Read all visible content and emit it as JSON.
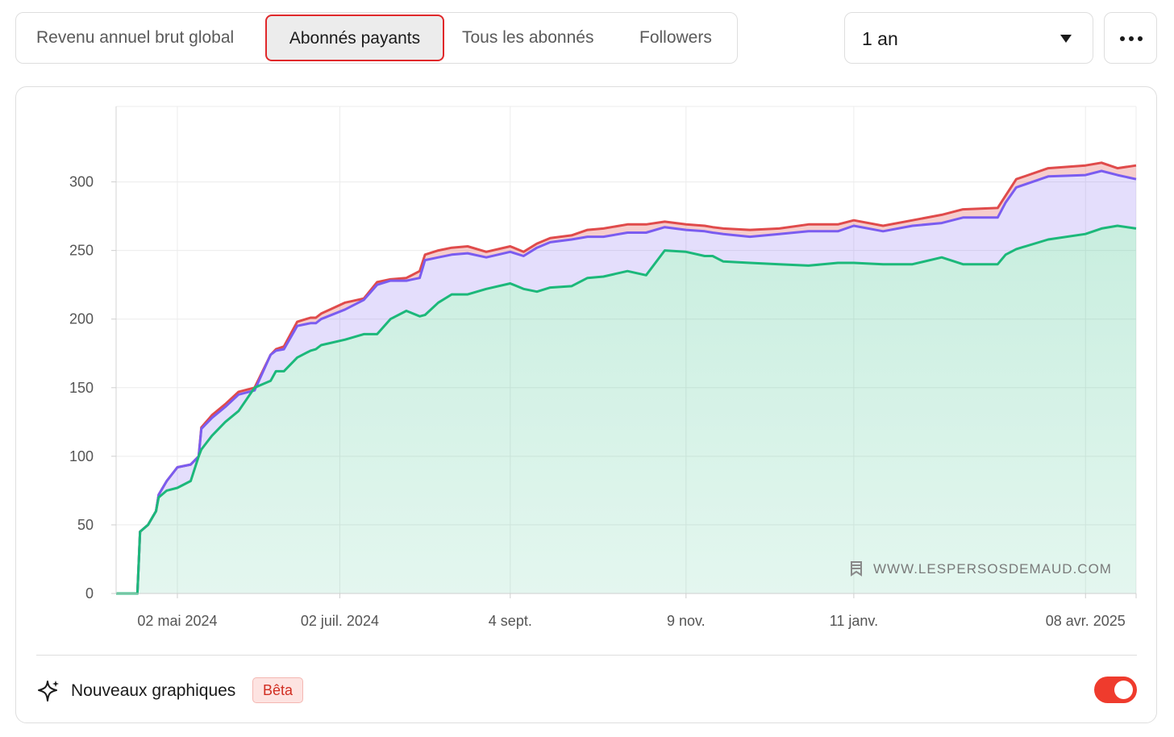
{
  "tabs": [
    {
      "label": "Revenu annuel brut global",
      "active": false
    },
    {
      "label": "Abonnés payants",
      "active": true
    },
    {
      "label": "Tous les abonnés",
      "active": false
    },
    {
      "label": "Followers",
      "active": false
    }
  ],
  "period_select": {
    "value": "1 an"
  },
  "more_menu": {
    "icon": "ellipsis-icon"
  },
  "watermark": {
    "text": "WWW.LESPERSOSDEMAUD.COM",
    "icon": "bookmark-icon"
  },
  "footer": {
    "feature_label": "Nouveaux graphiques",
    "badge": "Bêta",
    "toggle_on": true,
    "icon": "sparkle-icon"
  },
  "colors": {
    "accent_red": "#e0282a",
    "series_green": "#1cb87a",
    "series_purple": "#7a5cf0",
    "series_red": "#e04b4b"
  },
  "chart_data": {
    "type": "area",
    "title": "",
    "xlabel": "",
    "ylabel": "",
    "ylim": [
      0,
      355
    ],
    "yticks": [
      0,
      50,
      100,
      150,
      200,
      250,
      300
    ],
    "x_tick_labels": [
      "02 mai 2024",
      "02 juil. 2024",
      "4 sept.",
      "9 nov.",
      "11 janv.",
      "08 avr. 2025"
    ],
    "x_tick_dates": [
      "2024-05-02",
      "2024-07-02",
      "2024-09-04",
      "2024-11-09",
      "2025-01-11",
      "2025-04-08"
    ],
    "x_range": [
      "2024-04-09",
      "2025-04-27"
    ],
    "grid": true,
    "legend": "none",
    "x": [
      "2024-04-09",
      "2024-04-17",
      "2024-04-18",
      "2024-04-21",
      "2024-04-24",
      "2024-04-25",
      "2024-04-28",
      "2024-05-02",
      "2024-05-07",
      "2024-05-10",
      "2024-05-11",
      "2024-05-15",
      "2024-05-20",
      "2024-05-25",
      "2024-05-31",
      "2024-06-06",
      "2024-06-08",
      "2024-06-11",
      "2024-06-16",
      "2024-06-21",
      "2024-06-23",
      "2024-06-25",
      "2024-07-04",
      "2024-07-11",
      "2024-07-16",
      "2024-07-21",
      "2024-07-27",
      "2024-08-01",
      "2024-08-03",
      "2024-08-08",
      "2024-08-13",
      "2024-08-19",
      "2024-08-26",
      "2024-09-04",
      "2024-09-09",
      "2024-09-14",
      "2024-09-19",
      "2024-09-27",
      "2024-10-03",
      "2024-10-09",
      "2024-10-18",
      "2024-10-25",
      "2024-11-01",
      "2024-11-09",
      "2024-11-16",
      "2024-11-19",
      "2024-11-23",
      "2024-12-03",
      "2024-12-14",
      "2024-12-25",
      "2025-01-05",
      "2025-01-11",
      "2025-01-22",
      "2025-02-02",
      "2025-02-13",
      "2025-02-21",
      "2025-03-06",
      "2025-03-09",
      "2025-03-13",
      "2025-03-25",
      "2025-04-08",
      "2025-04-14",
      "2025-04-20",
      "2025-04-27"
    ],
    "series": [
      {
        "name": "",
        "color": "#1cb87a",
        "values": [
          0,
          0,
          45,
          50,
          60,
          70,
          75,
          77,
          82,
          100,
          105,
          115,
          125,
          133,
          150,
          155,
          162,
          162,
          172,
          177,
          178,
          181,
          185,
          189,
          189,
          200,
          206,
          202,
          203,
          212,
          218,
          218,
          222,
          226,
          222,
          220,
          223,
          224,
          230,
          231,
          235,
          232,
          250,
          249,
          246,
          246,
          242,
          241,
          240,
          239,
          241,
          241,
          240,
          240,
          245,
          240,
          240,
          247,
          251,
          258,
          262,
          266,
          268,
          266
        ]
      },
      {
        "name": "",
        "color": "#7a5cf0",
        "values": [
          0,
          0,
          45,
          50,
          60,
          72,
          82,
          92,
          94,
          100,
          120,
          128,
          136,
          145,
          148,
          174,
          177,
          178,
          195,
          197,
          197,
          200,
          207,
          214,
          225,
          228,
          228,
          230,
          243,
          245,
          247,
          248,
          245,
          249,
          246,
          252,
          256,
          258,
          260,
          260,
          263,
          263,
          267,
          265,
          264,
          263,
          262,
          260,
          262,
          264,
          264,
          268,
          264,
          268,
          270,
          274,
          274,
          285,
          296,
          304,
          305,
          308,
          305,
          302
        ]
      },
      {
        "name": "",
        "color": "#e04b4b",
        "values": [
          0,
          0,
          45,
          50,
          60,
          72,
          82,
          92,
          94,
          100,
          121,
          130,
          138,
          147,
          150,
          174,
          178,
          180,
          198,
          201,
          201,
          204,
          212,
          215,
          227,
          229,
          230,
          235,
          247,
          250,
          252,
          253,
          249,
          253,
          249,
          255,
          259,
          261,
          265,
          266,
          269,
          269,
          271,
          269,
          268,
          267,
          266,
          265,
          266,
          269,
          269,
          272,
          268,
          272,
          276,
          280,
          281,
          290,
          302,
          310,
          312,
          314,
          310,
          312
        ]
      }
    ]
  }
}
